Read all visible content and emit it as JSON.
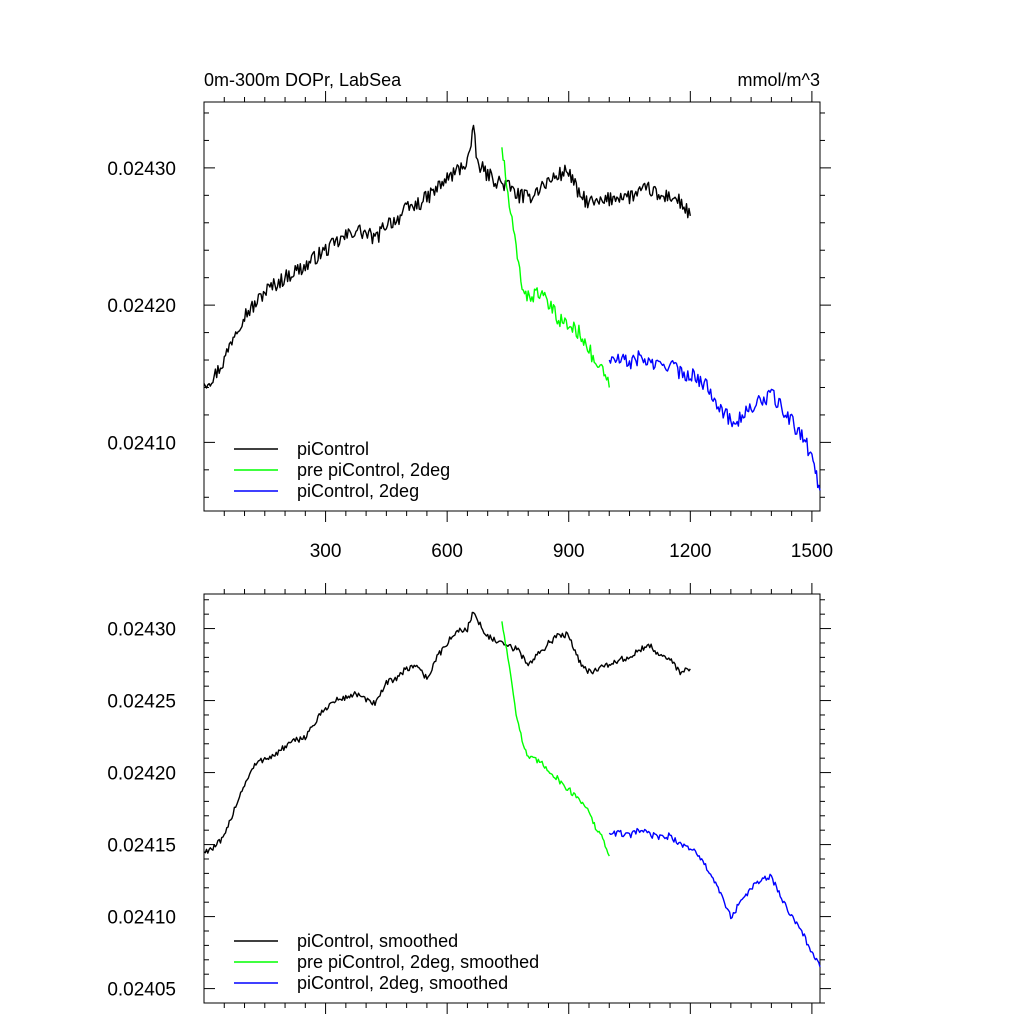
{
  "chart_data": [
    {
      "type": "line",
      "title": "0m-300m DOPr, LabSea",
      "units": "mmol/m^3",
      "xlim": [
        0,
        1520
      ],
      "ylim": [
        0.02405,
        0.024348
      ],
      "xticks": [
        300,
        600,
        900,
        1200,
        1500
      ],
      "yticks": [
        0.0241,
        0.0242,
        0.0243
      ],
      "ytick_labels": [
        "0.02410",
        "0.02420",
        "0.02430"
      ],
      "legend_position": "bottom-left",
      "series": [
        {
          "name": "piControl",
          "color": "#000000",
          "x": [
            0,
            25,
            50,
            75,
            100,
            125,
            150,
            175,
            200,
            225,
            250,
            275,
            300,
            325,
            350,
            375,
            400,
            425,
            450,
            475,
            500,
            525,
            550,
            575,
            600,
            625,
            650,
            665,
            675,
            700,
            725,
            750,
            775,
            800,
            825,
            850,
            875,
            900,
            925,
            950,
            975,
            1000,
            1025,
            1050,
            1075,
            1100,
            1125,
            1150,
            1175,
            1200
          ],
          "y": [
            0.024143,
            0.024148,
            0.02416,
            0.02418,
            0.024193,
            0.0242,
            0.02421,
            0.024215,
            0.02422,
            0.024225,
            0.024228,
            0.024235,
            0.02424,
            0.024245,
            0.02425,
            0.024255,
            0.024252,
            0.024248,
            0.02426,
            0.024262,
            0.02427,
            0.024273,
            0.024278,
            0.024285,
            0.024292,
            0.024298,
            0.024305,
            0.024326,
            0.024303,
            0.024295,
            0.02429,
            0.024287,
            0.02428,
            0.024278,
            0.024285,
            0.02429,
            0.024295,
            0.024298,
            0.02428,
            0.024275,
            0.024274,
            0.024277,
            0.02428,
            0.024279,
            0.024282,
            0.024285,
            0.024278,
            0.02428,
            0.024275,
            0.024265
          ]
        },
        {
          "name": "pre piControl, 2deg",
          "color": "#00ff00",
          "x": [
            735,
            750,
            760,
            770,
            785,
            800,
            825,
            850,
            875,
            900,
            925,
            940,
            950,
            960,
            975,
            990,
            1000
          ],
          "y": [
            0.024315,
            0.02428,
            0.02426,
            0.02424,
            0.024215,
            0.024205,
            0.02421,
            0.0242,
            0.02419,
            0.024185,
            0.02418,
            0.024175,
            0.024168,
            0.02416,
            0.024155,
            0.024148,
            0.02414
          ]
        },
        {
          "name": "piControl, 2deg",
          "color": "#0000ff",
          "x": [
            1000,
            1025,
            1050,
            1075,
            1100,
            1125,
            1150,
            1175,
            1200,
            1225,
            1250,
            1275,
            1300,
            1325,
            1350,
            1375,
            1400,
            1425,
            1450,
            1475,
            1500,
            1520
          ],
          "y": [
            0.02416,
            0.02416,
            0.024158,
            0.024162,
            0.024158,
            0.024155,
            0.024158,
            0.02415,
            0.02415,
            0.024145,
            0.024138,
            0.024125,
            0.024115,
            0.024118,
            0.024125,
            0.02413,
            0.024135,
            0.024125,
            0.024115,
            0.024105,
            0.02409,
            0.024065
          ]
        }
      ]
    },
    {
      "type": "line",
      "xlim": [
        0,
        1520
      ],
      "ylim": [
        0.02404,
        0.024324
      ],
      "xticks": [
        300,
        600,
        900,
        1200,
        1500
      ],
      "yticks": [
        0.02405,
        0.0241,
        0.02415,
        0.0242,
        0.02425,
        0.0243
      ],
      "ytick_labels": [
        "0.02405",
        "0.02410",
        "0.02415",
        "0.02420",
        "0.02425",
        "0.02430"
      ],
      "legend_position": "bottom-left",
      "series": [
        {
          "name": "piControl, smoothed",
          "color": "#000000",
          "x": [
            0,
            25,
            50,
            75,
            100,
            125,
            150,
            175,
            200,
            225,
            250,
            275,
            300,
            325,
            350,
            375,
            400,
            425,
            450,
            475,
            500,
            525,
            550,
            575,
            600,
            625,
            650,
            665,
            675,
            700,
            725,
            750,
            775,
            800,
            825,
            850,
            875,
            900,
            925,
            950,
            975,
            1000,
            1025,
            1050,
            1075,
            1100,
            1125,
            1150,
            1175,
            1200
          ],
          "y": [
            0.024145,
            0.024148,
            0.024155,
            0.024175,
            0.024192,
            0.024205,
            0.02421,
            0.024212,
            0.024218,
            0.024222,
            0.024225,
            0.024235,
            0.024245,
            0.02425,
            0.024252,
            0.024255,
            0.02425,
            0.024248,
            0.024262,
            0.024266,
            0.024272,
            0.024275,
            0.024265,
            0.02428,
            0.02429,
            0.024298,
            0.0243,
            0.024312,
            0.024305,
            0.024295,
            0.02429,
            0.024288,
            0.024285,
            0.024275,
            0.024282,
            0.02429,
            0.024295,
            0.024296,
            0.024278,
            0.02427,
            0.024272,
            0.024275,
            0.024278,
            0.02428,
            0.024285,
            0.024288,
            0.024282,
            0.024278,
            0.02427,
            0.024272
          ]
        },
        {
          "name": "pre piControl, 2deg, smoothed",
          "color": "#00ff00",
          "x": [
            735,
            750,
            760,
            770,
            785,
            800,
            825,
            850,
            875,
            900,
            925,
            940,
            950,
            960,
            975,
            990,
            1000
          ],
          "y": [
            0.024305,
            0.02428,
            0.024262,
            0.024242,
            0.024222,
            0.02421,
            0.024208,
            0.024202,
            0.024195,
            0.024188,
            0.024182,
            0.024178,
            0.024172,
            0.024165,
            0.024158,
            0.02415,
            0.024142
          ]
        },
        {
          "name": "piControl, 2deg, smoothed",
          "color": "#0000ff",
          "x": [
            1000,
            1025,
            1050,
            1075,
            1100,
            1125,
            1150,
            1175,
            1200,
            1225,
            1250,
            1275,
            1300,
            1325,
            1350,
            1375,
            1400,
            1425,
            1450,
            1475,
            1500,
            1520
          ],
          "y": [
            0.024158,
            0.024158,
            0.024156,
            0.02416,
            0.024157,
            0.024155,
            0.024156,
            0.02415,
            0.024148,
            0.02414,
            0.02413,
            0.024115,
            0.0241,
            0.02411,
            0.02412,
            0.024125,
            0.024128,
            0.024112,
            0.0241,
            0.02409,
            0.024075,
            0.024065
          ]
        }
      ]
    }
  ]
}
